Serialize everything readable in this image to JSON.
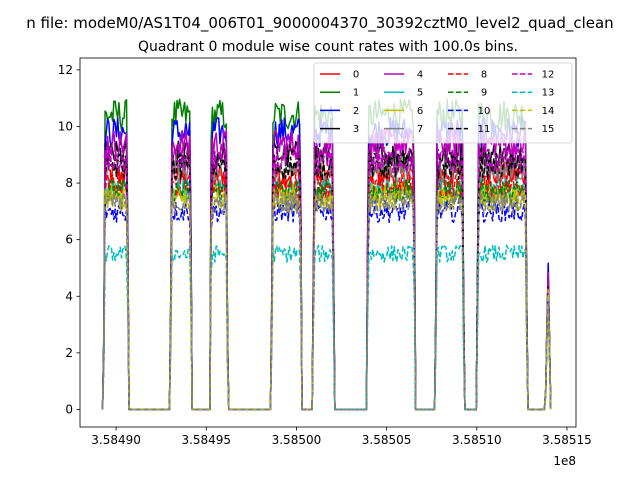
{
  "chart_data": {
    "type": "line",
    "suptitle": "n file: modeM0/AS1T04_006T01_9000004370_30392cztM0_level2_quad_clean",
    "title": "Quadrant 0 module wise count rates with 100.0s bins.",
    "xlabel": "",
    "ylabel": "",
    "x_offset_label": "1e8",
    "xlim": [
      3.58488,
      3.585155
    ],
    "ylim": [
      -0.62,
      12.42
    ],
    "x_ticks": [
      3.5849,
      3.58495,
      3.585,
      3.58505,
      3.5851,
      3.58515
    ],
    "x_tick_labels": [
      "3.58490",
      "3.58495",
      "3.58500",
      "3.58505",
      "3.58510",
      "3.58515"
    ],
    "y_ticks": [
      0,
      2,
      4,
      6,
      8,
      10,
      12
    ],
    "y_tick_labels": [
      "0",
      "2",
      "4",
      "6",
      "8",
      "10",
      "12"
    ],
    "grid": false,
    "legend_position": "top-right",
    "legend_columns": 4,
    "data_segments": [
      {
        "start": 3.584893,
        "end": 3.584907
      },
      {
        "start": 3.58493,
        "end": 3.584942
      },
      {
        "start": 3.584952,
        "end": 3.584962
      },
      {
        "start": 3.584986,
        "end": 3.585003
      },
      {
        "start": 3.585009,
        "end": 3.585021
      },
      {
        "start": 3.585039,
        "end": 3.585066
      },
      {
        "start": 3.585077,
        "end": 3.585093
      },
      {
        "start": 3.5851,
        "end": 3.585128
      }
    ],
    "final_spike": {
      "start": 3.585138,
      "end": 3.585141,
      "peak": 4.9
    },
    "series": [
      {
        "name": "0",
        "color": "#ff0000",
        "dash": "solid",
        "level": 8.3
      },
      {
        "name": "1",
        "color": "#008000",
        "dash": "solid",
        "level": 10.4
      },
      {
        "name": "2",
        "color": "#0000ff",
        "dash": "solid",
        "level": 9.8
      },
      {
        "name": "3",
        "color": "#000000",
        "dash": "solid",
        "level": 9.0
      },
      {
        "name": "4",
        "color": "#bf00bf",
        "dash": "solid",
        "level": 9.4
      },
      {
        "name": "5",
        "color": "#00bfbf",
        "dash": "solid",
        "level": 7.8
      },
      {
        "name": "6",
        "color": "#bfbf00",
        "dash": "solid",
        "level": 7.6
      },
      {
        "name": "7",
        "color": "#808080",
        "dash": "solid",
        "level": 8.5
      },
      {
        "name": "8",
        "color": "#ff0000",
        "dash": "dashed",
        "level": 7.9
      },
      {
        "name": "9",
        "color": "#008000",
        "dash": "dashed",
        "level": 7.7
      },
      {
        "name": "10",
        "color": "#0000ff",
        "dash": "dashed",
        "level": 7.0
      },
      {
        "name": "11",
        "color": "#000000",
        "dash": "dashed",
        "level": 8.6
      },
      {
        "name": "12",
        "color": "#bf00bf",
        "dash": "dashed",
        "level": 8.8
      },
      {
        "name": "13",
        "color": "#00bfbf",
        "dash": "dashed",
        "level": 5.5
      },
      {
        "name": "14",
        "color": "#bfbf00",
        "dash": "dashed",
        "level": 7.4
      },
      {
        "name": "15",
        "color": "#808080",
        "dash": "dashed",
        "level": 7.3
      }
    ]
  }
}
